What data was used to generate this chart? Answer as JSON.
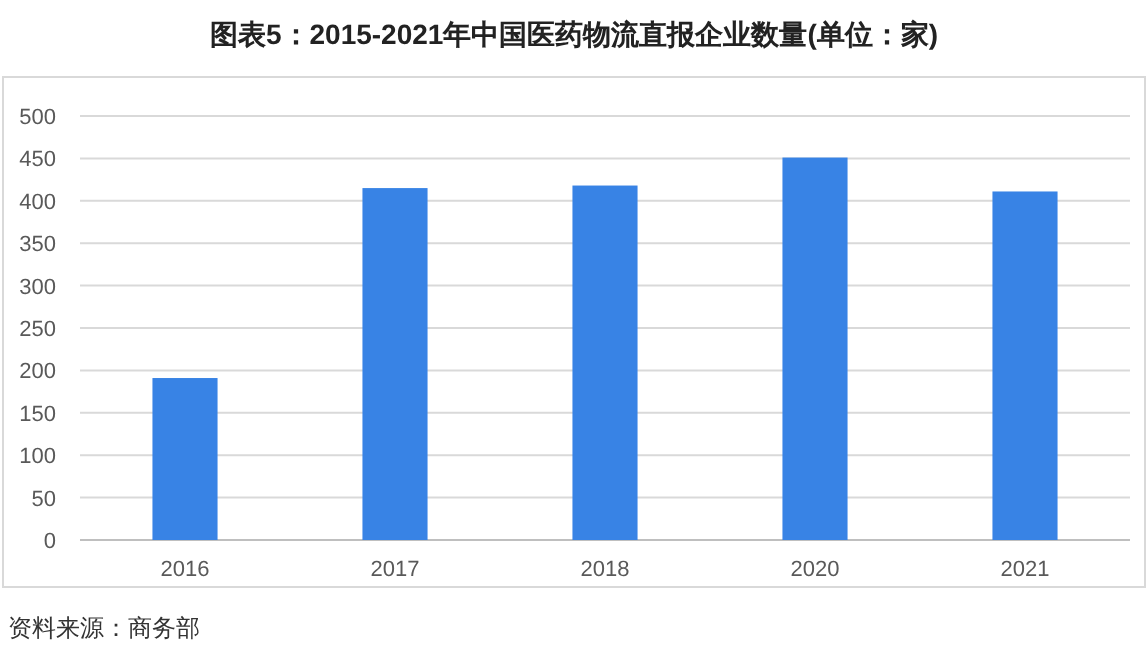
{
  "chart_data": {
    "type": "bar",
    "title": "图表5：2015-2021年中国医药物流直报企业数量(单位：家)",
    "categories": [
      "2016",
      "2017",
      "2018",
      "2020",
      "2021"
    ],
    "values": [
      191,
      415,
      418,
      451,
      411
    ],
    "color": "#3883e5",
    "ylim": [
      0,
      500
    ],
    "yticks": [
      0,
      50,
      100,
      150,
      200,
      250,
      300,
      350,
      400,
      450,
      500
    ],
    "grid": "y",
    "annotations": [
      "资料来源：商务部"
    ]
  }
}
